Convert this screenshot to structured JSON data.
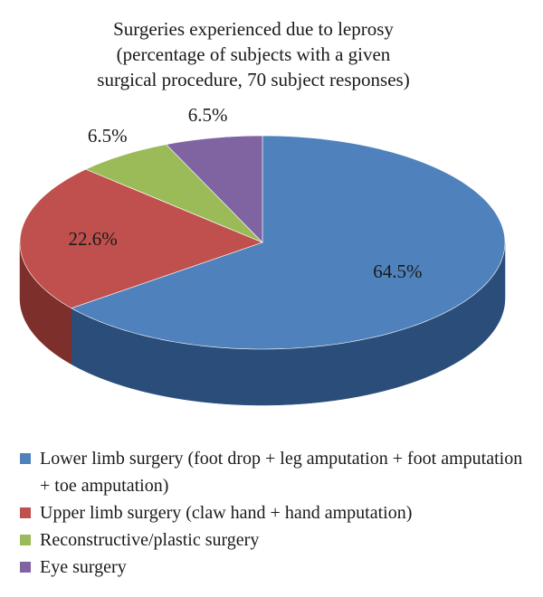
{
  "chart_data": {
    "type": "pie",
    "title_lines": [
      "Surgeries experienced due to leprosy",
      "(percentage of subjects with a given",
      "surgical procedure, 70 subject responses)"
    ],
    "slices": [
      {
        "name": "Lower limb surgery (foot drop + leg amputation + foot amputation + toe amputation)",
        "value": 64.5,
        "label": "64.5%",
        "color": "#4f81bd",
        "side": "#2b4d7a"
      },
      {
        "name": "Upper limb surgery (claw hand + hand amputation)",
        "value": 22.6,
        "label": "22.6%",
        "color": "#c0504d",
        "side": "#7d2f2c"
      },
      {
        "name": "Reconstructive/plastic surgery",
        "value": 6.5,
        "label": "6.5%",
        "color": "#9bbb59",
        "side": "#63792f"
      },
      {
        "name": "Eye surgery",
        "value": 6.5,
        "label": "6.5%",
        "color": "#8064a2",
        "side": "#4d3b66"
      }
    ],
    "style": "3d-pie",
    "legend_position": "bottom"
  }
}
